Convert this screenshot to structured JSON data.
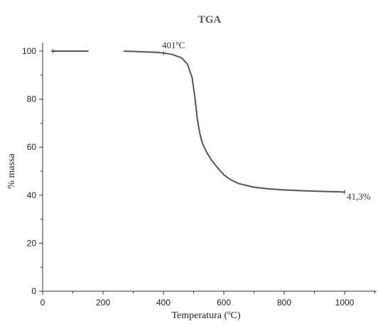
{
  "chart_data": {
    "type": "line",
    "title": "TGA",
    "xlabel": "Temperatura (ºC)",
    "ylabel": "% massa",
    "xlim": [
      0,
      1000
    ],
    "ylim": [
      0,
      100
    ],
    "xticks": [
      0,
      200,
      400,
      600,
      800,
      1000
    ],
    "yticks": [
      0,
      20,
      40,
      60,
      80,
      100
    ],
    "grid": false,
    "line_color": "#555555",
    "series": [
      {
        "segments": [
          {
            "x": [
              30,
              150
            ],
            "y": [
              100,
              100
            ]
          },
          {
            "x": [
              270,
              320,
              380,
              401,
              430,
              460,
              480,
              495,
              505,
              512,
              520,
              528,
              535,
              545,
              560,
              580,
              600,
              620,
              650,
              700,
              750,
              800,
              850,
              900,
              950,
              1000
            ],
            "y": [
              100,
              99.8,
              99.5,
              99.2,
              98.6,
              97.2,
              94.5,
              89,
              80,
              72,
              66,
              62,
              60,
              57.5,
              54.5,
              51.3,
              48.5,
              46.6,
              44.8,
              43.3,
              42.6,
              42.2,
              41.9,
              41.7,
              41.5,
              41.3
            ]
          }
        ]
      }
    ],
    "annotations": [
      {
        "text": "401ºC",
        "x": 401,
        "y": 99.2
      },
      {
        "text": "41,3%",
        "x": 1000,
        "y": 41.3
      }
    ]
  }
}
